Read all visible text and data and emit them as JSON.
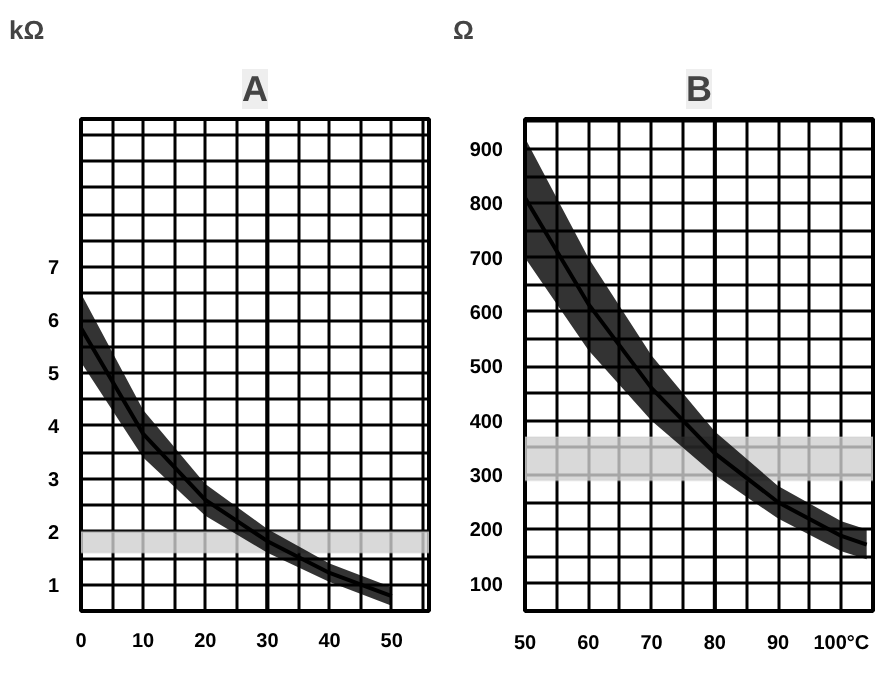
{
  "chart_data": [
    {
      "type": "line",
      "title": "A",
      "ylabel": "kΩ",
      "x": [
        0,
        10,
        20,
        30,
        40,
        50
      ],
      "series": [
        {
          "color": "#000000",
          "values": [
            5.85,
            3.85,
            2.6,
            1.82,
            1.22,
            0.78
          ],
          "lower": [
            5.2,
            3.4,
            2.3,
            1.6,
            1.05,
            0.6
          ],
          "upper": [
            6.5,
            4.3,
            2.9,
            2.05,
            1.4,
            0.95
          ]
        }
      ],
      "xlim": [
        0,
        56
      ],
      "ylim": [
        0.5,
        9.8
      ],
      "xticks": [
        0,
        10,
        20,
        30,
        40,
        50
      ],
      "yticks": [
        1,
        2,
        3,
        4,
        5,
        6,
        7
      ],
      "grid": true,
      "marker": "none",
      "ref_lines": [
        {
          "axis": "x",
          "value": 30,
          "color": "#000000"
        }
      ],
      "bands": [
        {
          "axis": "y",
          "from": 1.6,
          "to": 2.0,
          "color": "#d0d0d0"
        }
      ]
    },
    {
      "type": "line",
      "title": "B",
      "ylabel": "Ω",
      "x": [
        50,
        60,
        70,
        80,
        90,
        100,
        104
      ],
      "series": [
        {
          "color": "#000000",
          "values": [
            810,
            615,
            460,
            340,
            250,
            188,
            172
          ],
          "lower": [
            700,
            530,
            400,
            300,
            220,
            160,
            145
          ],
          "upper": [
            920,
            700,
            520,
            380,
            280,
            215,
            200
          ]
        }
      ],
      "xlim": [
        50,
        105
      ],
      "ylim": [
        50,
        955
      ],
      "xticks": [
        50,
        60,
        70,
        80,
        90,
        {
          "value": 100,
          "label": "100°C"
        }
      ],
      "yticks": [
        100,
        200,
        300,
        400,
        500,
        600,
        700,
        800,
        900
      ],
      "grid": true,
      "marker": "none",
      "ref_lines": [
        {
          "axis": "x",
          "value": 80,
          "color": "#000000"
        }
      ],
      "bands": [
        {
          "axis": "y",
          "from": 290,
          "to": 370,
          "color": "#d0d0d0"
        }
      ]
    }
  ]
}
